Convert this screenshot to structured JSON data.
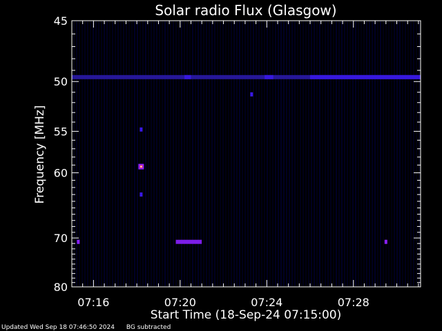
{
  "chart_data": {
    "type": "heatmap",
    "title": "Solar radio Flux (Glasgow)",
    "xlabel": "Start Time (18-Sep-24 07:15:00)",
    "ylabel": "Frequency [MHz]",
    "x_ticks": [
      "07:16",
      "07:20",
      "07:24",
      "07:28"
    ],
    "x_tick_minutes": [
      16,
      20,
      24,
      28
    ],
    "xlim_minutes": [
      15.0,
      31.1
    ],
    "y_ticks": [
      45,
      50,
      55,
      60,
      70,
      80
    ],
    "ylim": [
      45,
      80
    ],
    "y_scale": "reciprocal",
    "colors": {
      "background": "#000000",
      "axes": "#ffffff",
      "low": "#00003a",
      "mid": "#3a18e6",
      "high": "#ffffff"
    },
    "features": [
      {
        "kind": "band",
        "freq_mhz": 49.6,
        "minute_start": 15.0,
        "minute_end": 31.1,
        "intensity": 0.35
      },
      {
        "kind": "band",
        "freq_mhz": 49.6,
        "minute_start": 20.2,
        "minute_end": 20.5,
        "intensity": 0.55
      },
      {
        "kind": "band",
        "freq_mhz": 49.6,
        "minute_start": 23.9,
        "minute_end": 24.3,
        "intensity": 0.55
      },
      {
        "kind": "band",
        "freq_mhz": 49.6,
        "minute_start": 26.0,
        "minute_end": 31.1,
        "intensity": 0.5
      },
      {
        "kind": "band",
        "freq_mhz": 70.7,
        "minute_start": 19.8,
        "minute_end": 21.0,
        "intensity": 0.75
      },
      {
        "kind": "spot",
        "freq_mhz": 70.7,
        "minute": 15.3,
        "intensity": 0.7
      },
      {
        "kind": "spot",
        "freq_mhz": 70.7,
        "minute": 29.5,
        "intensity": 0.7
      },
      {
        "kind": "spot",
        "freq_mhz": 59.2,
        "minute": 18.2,
        "intensity": 1.0
      },
      {
        "kind": "spot",
        "freq_mhz": 54.8,
        "minute": 18.2,
        "intensity": 0.45
      },
      {
        "kind": "spot",
        "freq_mhz": 63.0,
        "minute": 18.2,
        "intensity": 0.45
      },
      {
        "kind": "spot",
        "freq_mhz": 51.2,
        "minute": 23.3,
        "intensity": 0.45
      }
    ]
  },
  "footer": {
    "updated": "Updated Wed Sep 18 07:46:50 2024",
    "note": "BG subtracted"
  }
}
